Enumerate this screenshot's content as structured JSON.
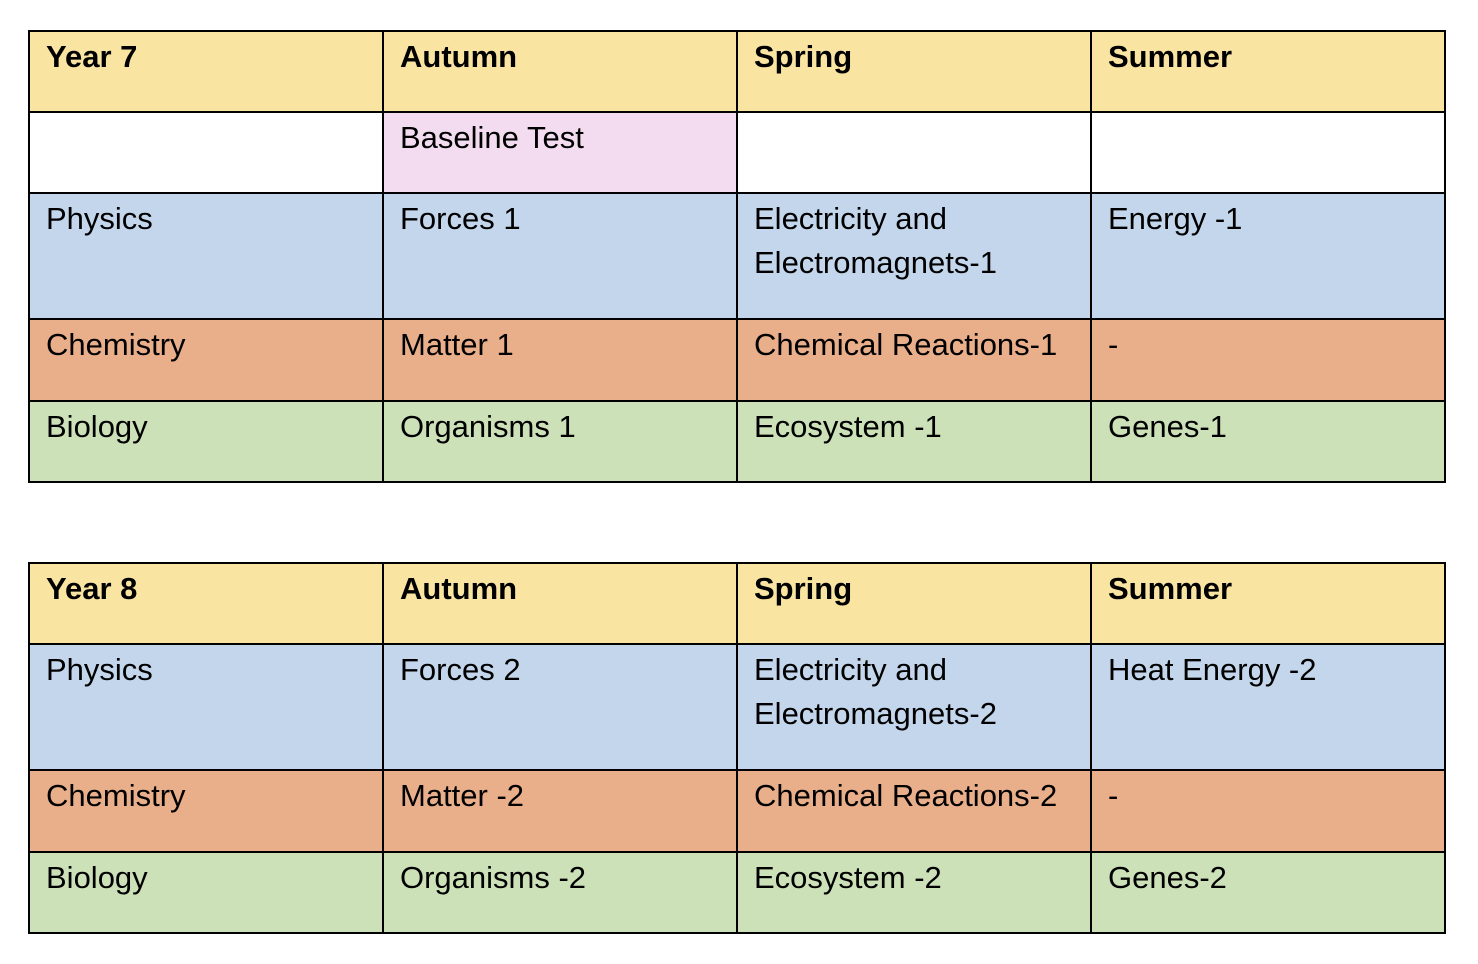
{
  "colors": {
    "header": "#f9e4a1",
    "baseline": "#f4dcf0",
    "physics": "#c3d6ec",
    "chemistry": "#e9ae8a",
    "biology": "#cde1b8",
    "blank": "#ffffff",
    "border": "#000000"
  },
  "year7": {
    "headers": [
      "Year 7",
      "Autumn",
      "Spring",
      "Summer"
    ],
    "baseline_row": [
      "",
      "Baseline Test",
      "",
      ""
    ],
    "physics_row": [
      "Physics",
      "Forces 1",
      "Electricity and Electromagnets-1",
      "Energy -1"
    ],
    "chemistry_row": [
      "Chemistry",
      "Matter 1",
      "Chemical Reactions-1",
      "-"
    ],
    "biology_row": [
      "Biology",
      "Organisms 1",
      "Ecosystem -1",
      "Genes-1"
    ]
  },
  "year8": {
    "headers": [
      "Year 8",
      "Autumn",
      "Spring",
      "Summer"
    ],
    "physics_row": [
      "Physics",
      "Forces 2",
      "Electricity and Electromagnets-2",
      "Heat Energy -2"
    ],
    "chemistry_row": [
      "Chemistry",
      "Matter -2",
      "Chemical Reactions-2",
      "-"
    ],
    "biology_row": [
      "Biology",
      "Organisms -2",
      "Ecosystem -2",
      "Genes-2"
    ]
  }
}
